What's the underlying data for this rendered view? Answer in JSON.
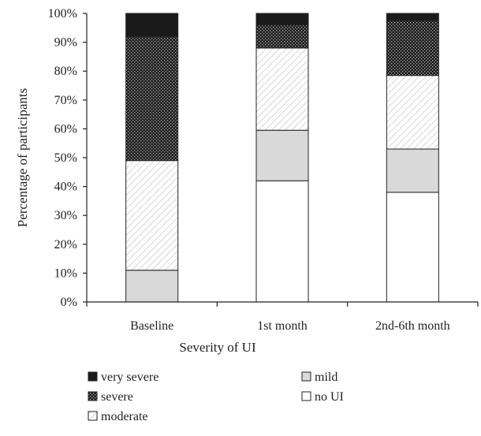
{
  "chart_data": {
    "type": "bar",
    "stacked": true,
    "percent": true,
    "xlabel": "Severity of UI",
    "ylabel": "Percentage of participants",
    "ylim": [
      0,
      100
    ],
    "y_ticks": [
      "0%",
      "10%",
      "20%",
      "30%",
      "40%",
      "50%",
      "60%",
      "70%",
      "80%",
      "90%",
      "100%"
    ],
    "categories": [
      "Baseline",
      "1st month",
      "2nd-6th month"
    ],
    "series": [
      {
        "name": "no UI",
        "values": [
          0,
          42,
          38
        ],
        "pattern": "white"
      },
      {
        "name": "mild",
        "values": [
          11,
          17.5,
          15
        ],
        "pattern": "lightgray"
      },
      {
        "name": "moderate",
        "values": [
          38,
          28.5,
          25.5
        ],
        "pattern": "diagonal-hatch"
      },
      {
        "name": "severe",
        "values": [
          43,
          8,
          19
        ],
        "pattern": "dark-dotted"
      },
      {
        "name": "very severe",
        "values": [
          8,
          4,
          2.5
        ],
        "pattern": "black"
      }
    ],
    "legend": {
      "placement": "bottom",
      "order": [
        "very severe",
        "severe",
        "moderate",
        "mild",
        "no UI"
      ]
    },
    "colors": {
      "axis": "#222222",
      "edge": "#222222",
      "mild": "#d9d9d9",
      "very_severe": "#1a1a1a",
      "severe_bg": "#1a1a1a"
    },
    "grid": false
  }
}
